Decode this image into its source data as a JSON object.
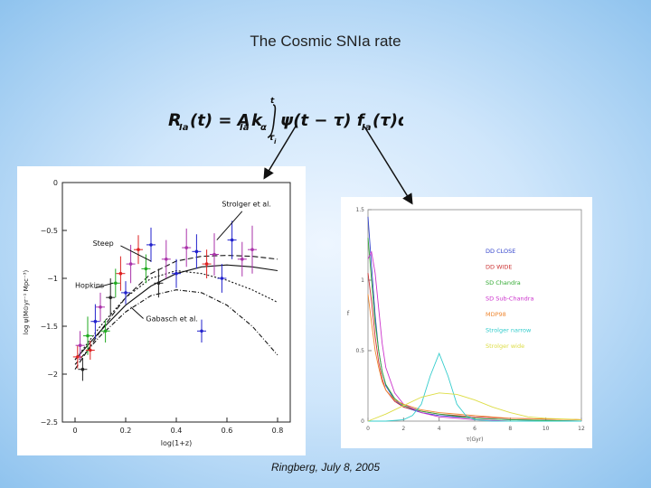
{
  "slide": {
    "title": "The Cosmic SNIa rate",
    "footer": "Ringberg, July 8, 2005"
  },
  "formula": {
    "lhs": "R",
    "lhs_sub": "Ia",
    "arg_t": "(t) = A",
    "a_sub": "Ia",
    "k": "k",
    "k_sub": "α",
    "int_upper": "t",
    "int_lower": "τ",
    "int_lower_sub": "i",
    "integrand": "ψ(t − τ) f",
    "f_sub": "Ia",
    "tail": "(τ)dτ"
  },
  "chart_data": [
    {
      "type": "scatter",
      "title": "",
      "xlabel": "log(1+z)",
      "ylabel": "log ψ(M⊙yr⁻¹ Mpc⁻³)",
      "xlim": [
        -0.05,
        0.85
      ],
      "ylim": [
        -2.5,
        0
      ],
      "xticks": [
        "0",
        "0.2",
        "0.4",
        "0.6",
        "0.8"
      ],
      "xtick_values": [
        0,
        0.2,
        0.4,
        0.6,
        0.8
      ],
      "yticks": [
        "0",
        "−0.5",
        "−1",
        "−1.5",
        "−2",
        "−2.5"
      ],
      "ytick_values": [
        0,
        -0.5,
        -1,
        -1.5,
        -2,
        -2.5
      ],
      "annotations": [
        "Strolger et al.",
        "Steep",
        "Hopkins",
        "Gabasch et al."
      ],
      "curves": [
        {
          "name": "Steep",
          "x": [
            0,
            0.1,
            0.2,
            0.3,
            0.4,
            0.5,
            0.6,
            0.7,
            0.8
          ],
          "y": [
            -1.95,
            -1.55,
            -1.2,
            -0.95,
            -0.82,
            -0.77,
            -0.76,
            -0.77,
            -0.8
          ]
        },
        {
          "name": "Hopkins",
          "x": [
            0,
            0.1,
            0.2,
            0.3,
            0.4,
            0.5,
            0.6,
            0.7,
            0.8
          ],
          "y": [
            -1.85,
            -1.5,
            -1.2,
            -1.0,
            -0.92,
            -0.95,
            -1.02,
            -1.12,
            -1.25
          ]
        },
        {
          "name": "Gabasch et al.",
          "x": [
            0,
            0.1,
            0.2,
            0.3,
            0.4,
            0.5,
            0.6,
            0.7,
            0.8
          ],
          "y": [
            -1.9,
            -1.6,
            -1.35,
            -1.18,
            -1.12,
            -1.15,
            -1.28,
            -1.5,
            -1.8
          ]
        },
        {
          "name": "Strolger et al.",
          "x": [
            0,
            0.1,
            0.2,
            0.3,
            0.4,
            0.5,
            0.6,
            0.7,
            0.8
          ],
          "y": [
            -1.85,
            -1.55,
            -1.28,
            -1.08,
            -0.95,
            -0.88,
            -0.86,
            -0.88,
            -0.92
          ]
        }
      ],
      "points": [
        {
          "x": 0.01,
          "y": -1.82,
          "err": 0.12,
          "color": "#d22"
        },
        {
          "x": 0.02,
          "y": -1.7,
          "err": 0.15,
          "color": "#a3a"
        },
        {
          "x": 0.03,
          "y": -1.95,
          "err": 0.12,
          "color": "#222"
        },
        {
          "x": 0.05,
          "y": -1.6,
          "err": 0.2,
          "color": "#2a2"
        },
        {
          "x": 0.06,
          "y": -1.75,
          "err": 0.1,
          "color": "#d22"
        },
        {
          "x": 0.08,
          "y": -1.45,
          "err": 0.18,
          "color": "#22c"
        },
        {
          "x": 0.1,
          "y": -1.3,
          "err": 0.15,
          "color": "#a3a"
        },
        {
          "x": 0.12,
          "y": -1.55,
          "err": 0.12,
          "color": "#2a2"
        },
        {
          "x": 0.14,
          "y": -1.2,
          "err": 0.2,
          "color": "#222"
        },
        {
          "x": 0.16,
          "y": -1.05,
          "err": 0.15,
          "color": "#2a2"
        },
        {
          "x": 0.18,
          "y": -0.95,
          "err": 0.18,
          "color": "#d22"
        },
        {
          "x": 0.2,
          "y": -1.15,
          "err": 0.12,
          "color": "#22c"
        },
        {
          "x": 0.22,
          "y": -0.85,
          "err": 0.2,
          "color": "#a3a"
        },
        {
          "x": 0.25,
          "y": -0.7,
          "err": 0.15,
          "color": "#d22"
        },
        {
          "x": 0.28,
          "y": -0.9,
          "err": 0.15,
          "color": "#2a2"
        },
        {
          "x": 0.3,
          "y": -0.65,
          "err": 0.18,
          "color": "#22c"
        },
        {
          "x": 0.33,
          "y": -1.05,
          "err": 0.15,
          "color": "#222"
        },
        {
          "x": 0.36,
          "y": -0.8,
          "err": 0.2,
          "color": "#a3a"
        },
        {
          "x": 0.4,
          "y": -0.95,
          "err": 0.15,
          "color": "#22c"
        },
        {
          "x": 0.44,
          "y": -0.68,
          "err": 0.2,
          "color": "#a3a"
        },
        {
          "x": 0.48,
          "y": -0.72,
          "err": 0.18,
          "color": "#22c"
        },
        {
          "x": 0.52,
          "y": -0.85,
          "err": 0.15,
          "color": "#d22"
        },
        {
          "x": 0.55,
          "y": -0.75,
          "err": 0.22,
          "color": "#a3a"
        },
        {
          "x": 0.58,
          "y": -1.0,
          "err": 0.15,
          "color": "#22c"
        },
        {
          "x": 0.62,
          "y": -0.6,
          "err": 0.2,
          "color": "#22c"
        },
        {
          "x": 0.66,
          "y": -0.8,
          "err": 0.18,
          "color": "#a3a"
        },
        {
          "x": 0.7,
          "y": -0.7,
          "err": 0.25,
          "color": "#a3a"
        },
        {
          "x": 0.5,
          "y": -1.55,
          "err": 0.12,
          "color": "#22c"
        }
      ]
    },
    {
      "type": "line",
      "title": "",
      "xlabel": "τ(Gyr)",
      "ylabel": "f",
      "xlim": [
        0,
        12
      ],
      "ylim": [
        0,
        1.5
      ],
      "xticks": [
        "0",
        "2",
        "4",
        "6",
        "8",
        "10",
        "12"
      ],
      "xtick_values": [
        0,
        2,
        4,
        6,
        8,
        10,
        12
      ],
      "yticks": [
        "0",
        "0.5",
        "1",
        "1.5"
      ],
      "ytick_values": [
        0,
        0.5,
        1,
        1.5
      ],
      "legend_position": "top-right",
      "series": [
        {
          "name": "DD CLOSE",
          "color": "#3344cc",
          "x": [
            0,
            0.2,
            0.4,
            0.6,
            0.8,
            1,
            1.5,
            2,
            3,
            4,
            6,
            8,
            12
          ],
          "y": [
            1.45,
            1.1,
            0.75,
            0.5,
            0.35,
            0.25,
            0.15,
            0.1,
            0.06,
            0.04,
            0.02,
            0.01,
            0.0
          ]
        },
        {
          "name": "DD WIDE",
          "color": "#cc3333",
          "x": [
            0,
            0.2,
            0.4,
            0.6,
            0.8,
            1,
            1.5,
            2,
            3,
            4,
            6,
            8,
            12
          ],
          "y": [
            1.05,
            0.85,
            0.6,
            0.42,
            0.3,
            0.22,
            0.14,
            0.1,
            0.07,
            0.05,
            0.03,
            0.02,
            0.01
          ]
        },
        {
          "name": "SD Chandra",
          "color": "#33aa33",
          "x": [
            0,
            0.2,
            0.4,
            0.6,
            0.8,
            1,
            1.5,
            2,
            3,
            4,
            6,
            8,
            12
          ],
          "y": [
            1.3,
            1.0,
            0.7,
            0.5,
            0.35,
            0.26,
            0.16,
            0.11,
            0.07,
            0.05,
            0.02,
            0.01,
            0.0
          ]
        },
        {
          "name": "SD Sub-Chandra",
          "color": "#cc33cc",
          "x": [
            0,
            0.2,
            0.4,
            0.6,
            0.8,
            1,
            1.5,
            2,
            3,
            4,
            6,
            8,
            12
          ],
          "y": [
            1.15,
            1.2,
            1.05,
            0.8,
            0.55,
            0.38,
            0.2,
            0.12,
            0.06,
            0.03,
            0.01,
            0.0,
            0.0
          ]
        },
        {
          "name": "MDP98",
          "color": "#ee8833",
          "x": [
            0,
            0.2,
            0.4,
            0.6,
            0.8,
            1,
            1.5,
            2,
            3,
            4,
            6,
            8,
            12
          ],
          "y": [
            0.9,
            0.7,
            0.5,
            0.38,
            0.28,
            0.22,
            0.15,
            0.12,
            0.08,
            0.06,
            0.04,
            0.02,
            0.01
          ]
        },
        {
          "name": "Strolger narrow",
          "color": "#33cccc",
          "x": [
            0,
            1,
            2,
            2.5,
            3,
            3.5,
            4,
            4.5,
            5,
            5.5,
            6,
            7,
            12
          ],
          "y": [
            0,
            0,
            0.01,
            0.04,
            0.12,
            0.32,
            0.48,
            0.32,
            0.12,
            0.04,
            0.01,
            0,
            0
          ]
        },
        {
          "name": "Strolger wide",
          "color": "#dddd44",
          "x": [
            0,
            1,
            2,
            3,
            4,
            5,
            6,
            7,
            8,
            9,
            10,
            12
          ],
          "y": [
            0,
            0.05,
            0.11,
            0.17,
            0.2,
            0.19,
            0.15,
            0.1,
            0.06,
            0.03,
            0.02,
            0.01
          ]
        }
      ]
    }
  ]
}
